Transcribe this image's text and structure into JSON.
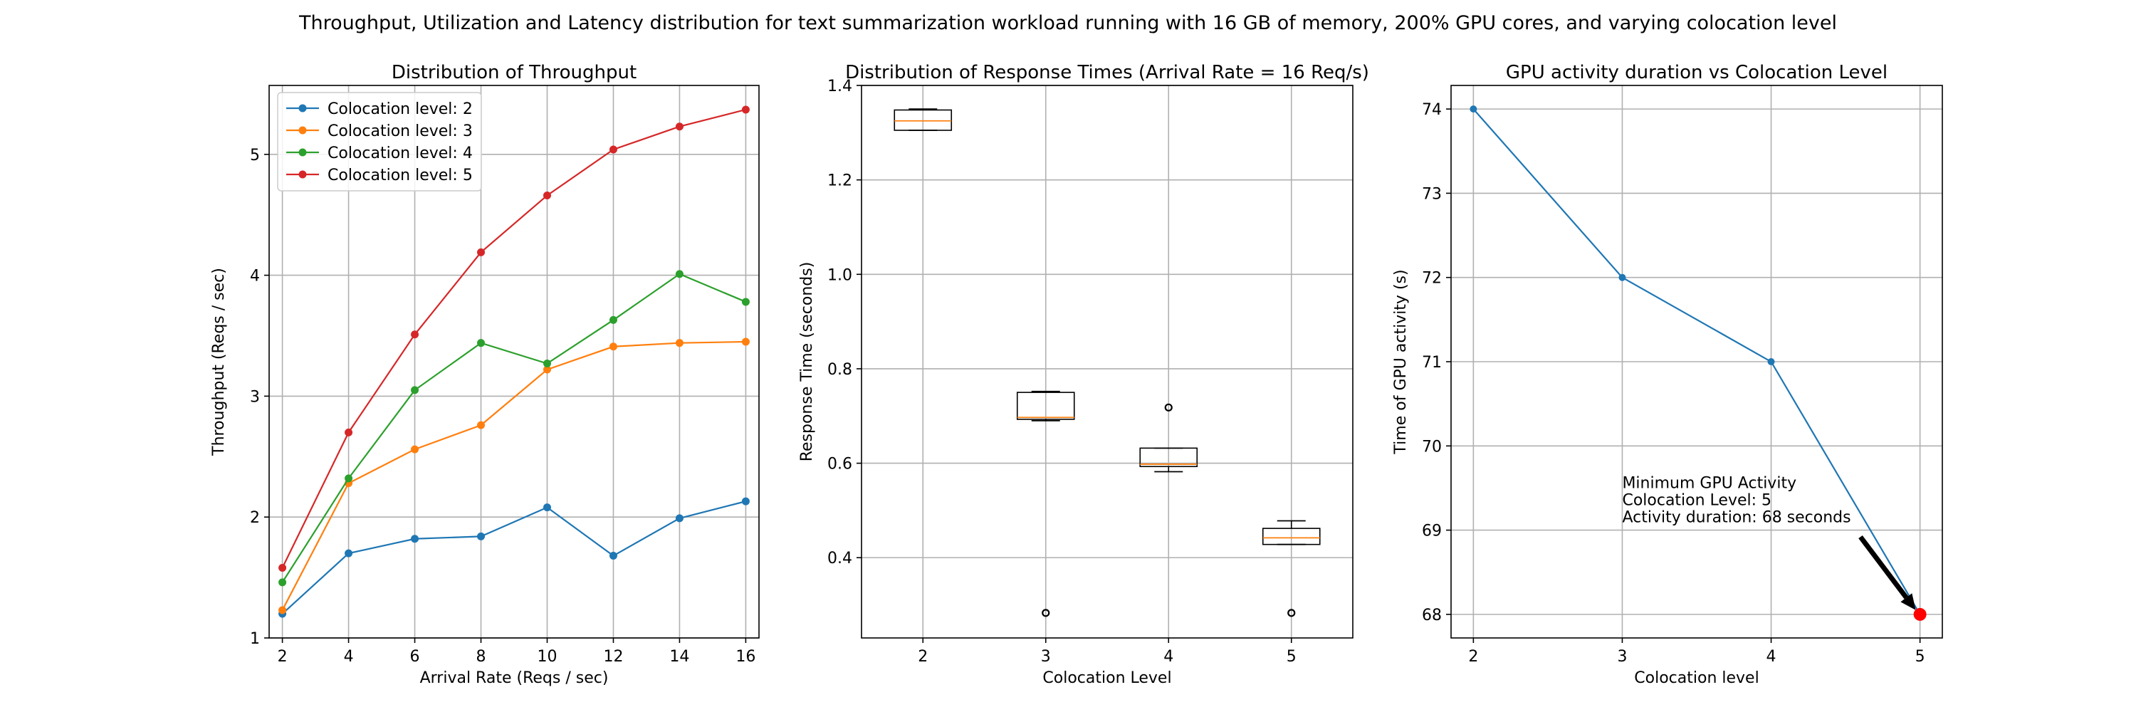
{
  "figure": {
    "suptitle": "Throughput, Utilization and Latency distribution for text summarization workload running with 16 GB of memory, 200% GPU cores, and varying colocation level"
  },
  "chart_data": [
    {
      "type": "line",
      "title": "Distribution of Throughput",
      "xlabel": "Arrival Rate (Reqs / sec)",
      "ylabel": "Throughput (Reqs / sec)",
      "xlim": [
        1.6,
        16.4
      ],
      "ylim": [
        1,
        5.57
      ],
      "xticks": [
        2,
        4,
        6,
        8,
        10,
        12,
        14,
        16
      ],
      "yticks": [
        1,
        2,
        3,
        4,
        5
      ],
      "grid": true,
      "legend": "top-left",
      "x": [
        2,
        4,
        6,
        8,
        10,
        12,
        14,
        16
      ],
      "series": [
        {
          "name": "Colocation level: 2",
          "color": "#1f77b4",
          "values": [
            1.2,
            1.7,
            1.82,
            1.84,
            2.08,
            1.68,
            1.99,
            2.13
          ]
        },
        {
          "name": "Colocation level: 3",
          "color": "#ff7f0e",
          "values": [
            1.23,
            2.28,
            2.56,
            2.76,
            3.22,
            3.41,
            3.44,
            3.45
          ]
        },
        {
          "name": "Colocation level: 4",
          "color": "#2ca02c",
          "values": [
            1.46,
            2.32,
            3.05,
            3.44,
            3.27,
            3.63,
            4.01,
            3.78
          ]
        },
        {
          "name": "Colocation level: 5",
          "color": "#d62728",
          "values": [
            1.58,
            2.7,
            3.51,
            4.19,
            4.66,
            5.04,
            5.23,
            5.37
          ]
        }
      ]
    },
    {
      "type": "box",
      "title": "Distribution of Response Times (Arrival Rate = 16 Req/s)",
      "xlabel": "Colocation Level",
      "ylabel": "Response Time (seconds)",
      "ylim": [
        0.23,
        1.4
      ],
      "yticks": [
        0.4,
        0.6,
        0.8,
        1.0,
        1.2,
        1.4
      ],
      "ytick_labels": [
        "0.4",
        "0.6",
        "0.8",
        "1.0",
        "1.2",
        "1.4"
      ],
      "grid": true,
      "categories": [
        "2",
        "3",
        "4",
        "5"
      ],
      "boxes": [
        {
          "whisker_low": 1.305,
          "q1": 1.305,
          "median": 1.325,
          "q3": 1.348,
          "whisker_high": 1.35,
          "outliers": []
        },
        {
          "whisker_low": 0.69,
          "q1": 0.693,
          "median": 0.697,
          "q3": 0.75,
          "whisker_high": 0.752,
          "outliers": [
            0.283
          ]
        },
        {
          "whisker_low": 0.582,
          "q1": 0.593,
          "median": 0.598,
          "q3": 0.632,
          "whisker_high": 0.632,
          "outliers": [
            0.718
          ]
        },
        {
          "whisker_low": 0.428,
          "q1": 0.428,
          "median": 0.442,
          "q3": 0.462,
          "whisker_high": 0.478,
          "outliers": [
            0.283
          ]
        }
      ]
    },
    {
      "type": "line",
      "title": "GPU activity duration vs Colocation Level",
      "xlabel": "Colocation level",
      "ylabel": "Time of GPU activity (s)",
      "xlim": [
        1.85,
        5.15
      ],
      "ylim": [
        67.72,
        74.28
      ],
      "xticks": [
        2,
        3,
        4,
        5
      ],
      "yticks": [
        68,
        69,
        70,
        71,
        72,
        73,
        74
      ],
      "grid": true,
      "x": [
        2,
        3,
        4,
        5
      ],
      "series": [
        {
          "color": "#1f77b4",
          "values": [
            74,
            72,
            71,
            68
          ]
        }
      ],
      "highlight": {
        "x": 5,
        "y": 68,
        "color": "#ff0000"
      },
      "annotation": {
        "lines": [
          "Minimum GPU Activity",
          "Colocation Level: 5",
          "Activity duration: 68 seconds"
        ],
        "text_x": 3.0,
        "text_y": 69.5,
        "arrow_from_x": 4.6,
        "arrow_from_y": 68.92
      }
    }
  ]
}
